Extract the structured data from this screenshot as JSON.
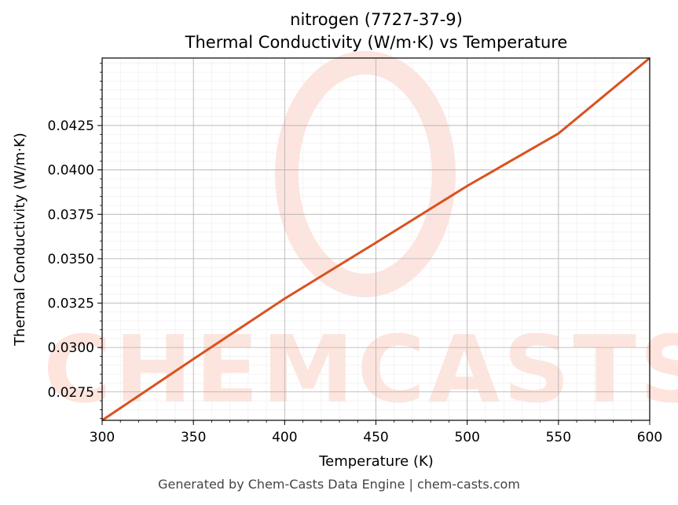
{
  "chart_data": {
    "type": "line",
    "title_line1": "nitrogen (7727-37-9)",
    "title_line2": "Thermal Conductivity (W/m·K) vs Temperature",
    "xlabel": "Temperature (K)",
    "ylabel": "Thermal Conductivity (W/m·K)",
    "xlim": [
      300,
      600
    ],
    "ylim": [
      0.0259,
      0.0463
    ],
    "xticks": [
      300,
      350,
      400,
      450,
      500,
      550,
      600
    ],
    "xtick_labels": [
      "300",
      "350",
      "400",
      "450",
      "500",
      "550",
      "600"
    ],
    "yticks": [
      0.0275,
      0.03,
      0.0325,
      0.035,
      0.0375,
      0.04,
      0.0425
    ],
    "ytick_labels": [
      "0.0275",
      "0.0300",
      "0.0325",
      "0.0350",
      "0.0375",
      "0.0400",
      "0.0425"
    ],
    "grid": true,
    "series": [
      {
        "color": "#d9521e",
        "x": [
          300,
          350,
          400,
          450,
          500,
          550,
          600
        ],
        "y": [
          0.0259,
          0.02935,
          0.03275,
          0.0359,
          0.0391,
          0.04205,
          0.0463
        ]
      }
    ]
  },
  "watermark": {
    "text": "CHEMCASTS",
    "color": "#fde3dc"
  },
  "footer": {
    "text": "Generated by Chem-Casts Data Engine | chem-casts.com"
  }
}
